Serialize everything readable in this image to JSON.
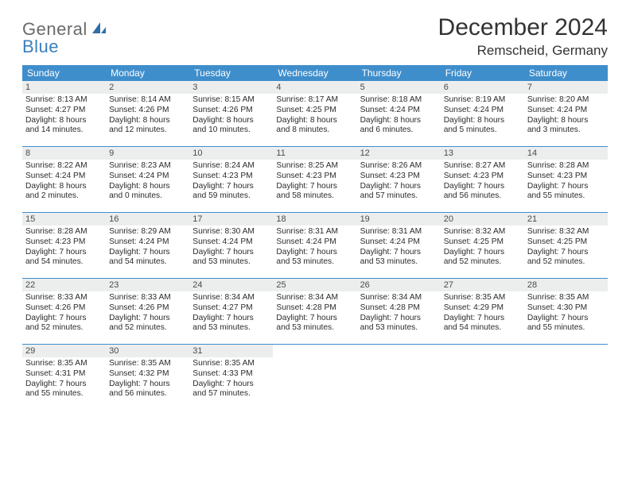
{
  "logo": {
    "general": "General",
    "blue": "Blue"
  },
  "title": "December 2024",
  "location": "Remscheid, Germany",
  "header_bg": "#3f8ecc",
  "daynum_bg": "#eceeee",
  "border_color": "#3f8ecc",
  "day_names": [
    "Sunday",
    "Monday",
    "Tuesday",
    "Wednesday",
    "Thursday",
    "Friday",
    "Saturday"
  ],
  "weeks": [
    [
      {
        "n": "1",
        "sr": "Sunrise: 8:13 AM",
        "ss": "Sunset: 4:27 PM",
        "d1": "Daylight: 8 hours",
        "d2": "and 14 minutes."
      },
      {
        "n": "2",
        "sr": "Sunrise: 8:14 AM",
        "ss": "Sunset: 4:26 PM",
        "d1": "Daylight: 8 hours",
        "d2": "and 12 minutes."
      },
      {
        "n": "3",
        "sr": "Sunrise: 8:15 AM",
        "ss": "Sunset: 4:26 PM",
        "d1": "Daylight: 8 hours",
        "d2": "and 10 minutes."
      },
      {
        "n": "4",
        "sr": "Sunrise: 8:17 AM",
        "ss": "Sunset: 4:25 PM",
        "d1": "Daylight: 8 hours",
        "d2": "and 8 minutes."
      },
      {
        "n": "5",
        "sr": "Sunrise: 8:18 AM",
        "ss": "Sunset: 4:24 PM",
        "d1": "Daylight: 8 hours",
        "d2": "and 6 minutes."
      },
      {
        "n": "6",
        "sr": "Sunrise: 8:19 AM",
        "ss": "Sunset: 4:24 PM",
        "d1": "Daylight: 8 hours",
        "d2": "and 5 minutes."
      },
      {
        "n": "7",
        "sr": "Sunrise: 8:20 AM",
        "ss": "Sunset: 4:24 PM",
        "d1": "Daylight: 8 hours",
        "d2": "and 3 minutes."
      }
    ],
    [
      {
        "n": "8",
        "sr": "Sunrise: 8:22 AM",
        "ss": "Sunset: 4:24 PM",
        "d1": "Daylight: 8 hours",
        "d2": "and 2 minutes."
      },
      {
        "n": "9",
        "sr": "Sunrise: 8:23 AM",
        "ss": "Sunset: 4:24 PM",
        "d1": "Daylight: 8 hours",
        "d2": "and 0 minutes."
      },
      {
        "n": "10",
        "sr": "Sunrise: 8:24 AM",
        "ss": "Sunset: 4:23 PM",
        "d1": "Daylight: 7 hours",
        "d2": "and 59 minutes."
      },
      {
        "n": "11",
        "sr": "Sunrise: 8:25 AM",
        "ss": "Sunset: 4:23 PM",
        "d1": "Daylight: 7 hours",
        "d2": "and 58 minutes."
      },
      {
        "n": "12",
        "sr": "Sunrise: 8:26 AM",
        "ss": "Sunset: 4:23 PM",
        "d1": "Daylight: 7 hours",
        "d2": "and 57 minutes."
      },
      {
        "n": "13",
        "sr": "Sunrise: 8:27 AM",
        "ss": "Sunset: 4:23 PM",
        "d1": "Daylight: 7 hours",
        "d2": "and 56 minutes."
      },
      {
        "n": "14",
        "sr": "Sunrise: 8:28 AM",
        "ss": "Sunset: 4:23 PM",
        "d1": "Daylight: 7 hours",
        "d2": "and 55 minutes."
      }
    ],
    [
      {
        "n": "15",
        "sr": "Sunrise: 8:28 AM",
        "ss": "Sunset: 4:23 PM",
        "d1": "Daylight: 7 hours",
        "d2": "and 54 minutes."
      },
      {
        "n": "16",
        "sr": "Sunrise: 8:29 AM",
        "ss": "Sunset: 4:24 PM",
        "d1": "Daylight: 7 hours",
        "d2": "and 54 minutes."
      },
      {
        "n": "17",
        "sr": "Sunrise: 8:30 AM",
        "ss": "Sunset: 4:24 PM",
        "d1": "Daylight: 7 hours",
        "d2": "and 53 minutes."
      },
      {
        "n": "18",
        "sr": "Sunrise: 8:31 AM",
        "ss": "Sunset: 4:24 PM",
        "d1": "Daylight: 7 hours",
        "d2": "and 53 minutes."
      },
      {
        "n": "19",
        "sr": "Sunrise: 8:31 AM",
        "ss": "Sunset: 4:24 PM",
        "d1": "Daylight: 7 hours",
        "d2": "and 53 minutes."
      },
      {
        "n": "20",
        "sr": "Sunrise: 8:32 AM",
        "ss": "Sunset: 4:25 PM",
        "d1": "Daylight: 7 hours",
        "d2": "and 52 minutes."
      },
      {
        "n": "21",
        "sr": "Sunrise: 8:32 AM",
        "ss": "Sunset: 4:25 PM",
        "d1": "Daylight: 7 hours",
        "d2": "and 52 minutes."
      }
    ],
    [
      {
        "n": "22",
        "sr": "Sunrise: 8:33 AM",
        "ss": "Sunset: 4:26 PM",
        "d1": "Daylight: 7 hours",
        "d2": "and 52 minutes."
      },
      {
        "n": "23",
        "sr": "Sunrise: 8:33 AM",
        "ss": "Sunset: 4:26 PM",
        "d1": "Daylight: 7 hours",
        "d2": "and 52 minutes."
      },
      {
        "n": "24",
        "sr": "Sunrise: 8:34 AM",
        "ss": "Sunset: 4:27 PM",
        "d1": "Daylight: 7 hours",
        "d2": "and 53 minutes."
      },
      {
        "n": "25",
        "sr": "Sunrise: 8:34 AM",
        "ss": "Sunset: 4:28 PM",
        "d1": "Daylight: 7 hours",
        "d2": "and 53 minutes."
      },
      {
        "n": "26",
        "sr": "Sunrise: 8:34 AM",
        "ss": "Sunset: 4:28 PM",
        "d1": "Daylight: 7 hours",
        "d2": "and 53 minutes."
      },
      {
        "n": "27",
        "sr": "Sunrise: 8:35 AM",
        "ss": "Sunset: 4:29 PM",
        "d1": "Daylight: 7 hours",
        "d2": "and 54 minutes."
      },
      {
        "n": "28",
        "sr": "Sunrise: 8:35 AM",
        "ss": "Sunset: 4:30 PM",
        "d1": "Daylight: 7 hours",
        "d2": "and 55 minutes."
      }
    ],
    [
      {
        "n": "29",
        "sr": "Sunrise: 8:35 AM",
        "ss": "Sunset: 4:31 PM",
        "d1": "Daylight: 7 hours",
        "d2": "and 55 minutes."
      },
      {
        "n": "30",
        "sr": "Sunrise: 8:35 AM",
        "ss": "Sunset: 4:32 PM",
        "d1": "Daylight: 7 hours",
        "d2": "and 56 minutes."
      },
      {
        "n": "31",
        "sr": "Sunrise: 8:35 AM",
        "ss": "Sunset: 4:33 PM",
        "d1": "Daylight: 7 hours",
        "d2": "and 57 minutes."
      },
      null,
      null,
      null,
      null
    ]
  ]
}
